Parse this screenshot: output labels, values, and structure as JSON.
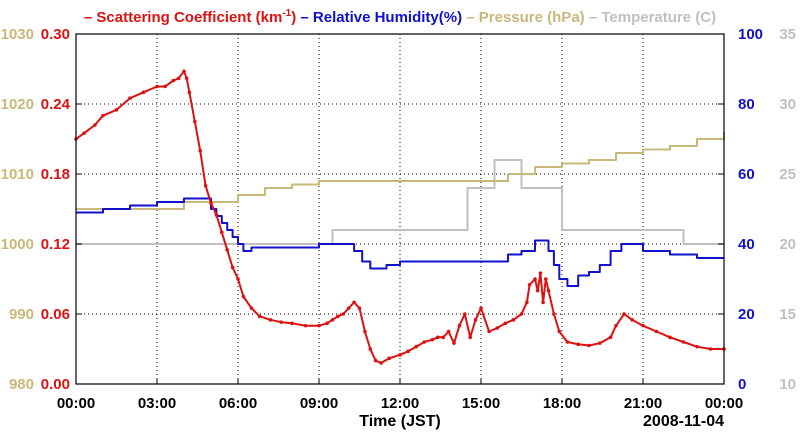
{
  "chart_data": {
    "type": "line",
    "date_label": "2008-11-04",
    "xlabel": "Time (JST)",
    "x_unit": "hours",
    "xlim": [
      0,
      24
    ],
    "x_ticks": [
      {
        "v": 0,
        "label": "00:00"
      },
      {
        "v": 3,
        "label": "03:00"
      },
      {
        "v": 6,
        "label": "06:00"
      },
      {
        "v": 9,
        "label": "09:00"
      },
      {
        "v": 12,
        "label": "12:00"
      },
      {
        "v": 15,
        "label": "15:00"
      },
      {
        "v": 18,
        "label": "18:00"
      },
      {
        "v": 21,
        "label": "21:00"
      },
      {
        "v": 24,
        "label": "00:00"
      }
    ],
    "grid": true,
    "legend": [
      {
        "prefix": "–",
        "text": "Scattering Coefficient (km",
        "sup": "-1",
        "suffix": ")",
        "color": "#dd1111"
      },
      {
        "prefix": "–",
        "text": "Relative Humidity(%)",
        "color": "#1111cc"
      },
      {
        "prefix": "–",
        "text": "Pressure (hPa)",
        "color": "#c8b87a"
      },
      {
        "prefix": "–",
        "text": "Temperature (",
        "suffix": "C)",
        "color": "#c0c0c0"
      }
    ],
    "axes": {
      "pressure": {
        "side": "left-outer",
        "color": "#c8b87a",
        "ylim": [
          980,
          1030
        ],
        "ticks": [
          "980",
          "990",
          "1000",
          "1010",
          "1020",
          "1030"
        ]
      },
      "scattering": {
        "side": "left-inner",
        "color": "#dd1111",
        "ylim": [
          0,
          0.3
        ],
        "ticks": [
          "0.00",
          "0.06",
          "0.12",
          "0.18",
          "0.24",
          "0.30"
        ]
      },
      "humidity": {
        "side": "right-inner",
        "color": "#1111cc",
        "ylim": [
          0,
          100
        ],
        "ticks": [
          "0",
          "20",
          "40",
          "60",
          "80",
          "100"
        ]
      },
      "temperature": {
        "side": "right-outer",
        "color": "#c0c0c0",
        "ylim": [
          10,
          35
        ],
        "ticks": [
          "10",
          "15",
          "20",
          "25",
          "30",
          "35"
        ]
      }
    },
    "series": [
      {
        "name": "Scattering Coefficient",
        "axis": "scattering",
        "color": "#dd1111",
        "markers": true,
        "x": [
          0,
          0.3,
          0.7,
          1,
          1.5,
          2,
          2.5,
          3,
          3.3,
          3.6,
          3.8,
          4.0,
          4.1,
          4.2,
          4.4,
          4.6,
          4.8,
          5.0,
          5.2,
          5.4,
          5.6,
          5.8,
          6.0,
          6.2,
          6.5,
          6.8,
          7.2,
          7.6,
          8.0,
          8.5,
          9.0,
          9.3,
          9.5,
          9.7,
          9.9,
          10.1,
          10.3,
          10.5,
          10.7,
          10.9,
          11.1,
          11.3,
          11.6,
          12.0,
          12.3,
          12.6,
          12.9,
          13.2,
          13.4,
          13.6,
          13.8,
          14.0,
          14.2,
          14.4,
          14.6,
          14.8,
          15.0,
          15.3,
          15.6,
          15.9,
          16.2,
          16.5,
          16.7,
          16.8,
          17.0,
          17.1,
          17.2,
          17.3,
          17.4,
          17.5,
          17.7,
          17.9,
          18.2,
          18.6,
          19.0,
          19.4,
          19.8,
          20.0,
          20.3,
          20.6,
          21.0,
          21.5,
          22.0,
          22.5,
          23.0,
          23.5,
          24.0
        ],
        "values": [
          0.21,
          0.215,
          0.222,
          0.23,
          0.235,
          0.245,
          0.25,
          0.255,
          0.255,
          0.26,
          0.262,
          0.268,
          0.262,
          0.25,
          0.225,
          0.2,
          0.17,
          0.155,
          0.145,
          0.13,
          0.115,
          0.1,
          0.09,
          0.075,
          0.065,
          0.058,
          0.055,
          0.053,
          0.052,
          0.05,
          0.05,
          0.052,
          0.055,
          0.058,
          0.06,
          0.065,
          0.07,
          0.065,
          0.045,
          0.03,
          0.02,
          0.018,
          0.022,
          0.025,
          0.028,
          0.032,
          0.036,
          0.038,
          0.04,
          0.04,
          0.045,
          0.035,
          0.05,
          0.06,
          0.04,
          0.055,
          0.065,
          0.045,
          0.048,
          0.052,
          0.055,
          0.06,
          0.07,
          0.085,
          0.09,
          0.08,
          0.095,
          0.07,
          0.09,
          0.08,
          0.06,
          0.045,
          0.036,
          0.034,
          0.033,
          0.035,
          0.04,
          0.05,
          0.06,
          0.055,
          0.05,
          0.045,
          0.04,
          0.036,
          0.032,
          0.03,
          0.03
        ]
      },
      {
        "name": "Relative Humidity",
        "axis": "humidity",
        "color": "#1111cc",
        "markers": false,
        "step": true,
        "x": [
          0,
          1,
          2,
          3,
          4,
          4.5,
          5.0,
          5.2,
          5.4,
          5.6,
          5.8,
          6.0,
          6.2,
          6.5,
          7.0,
          8.0,
          9.0,
          9.5,
          10.0,
          10.3,
          10.6,
          10.9,
          11.2,
          11.5,
          12.0,
          13.0,
          14.0,
          15.0,
          16.0,
          16.5,
          17.0,
          17.3,
          17.5,
          17.7,
          17.9,
          18.2,
          18.6,
          19.0,
          19.4,
          19.8,
          20.2,
          21.0,
          22.0,
          23.0,
          24.0
        ],
        "values": [
          49,
          50,
          51,
          52,
          53,
          53,
          50,
          48,
          46,
          44,
          42,
          40,
          38,
          39,
          39,
          39,
          40,
          40,
          40,
          38,
          35,
          33,
          33,
          34,
          35,
          35,
          35,
          35,
          37,
          38,
          41,
          41,
          38,
          34,
          30,
          28,
          31,
          32,
          34,
          38,
          40,
          38,
          37,
          36,
          36
        ]
      },
      {
        "name": "Pressure",
        "axis": "pressure",
        "color": "#c8b87a",
        "markers": false,
        "step": true,
        "x": [
          0,
          2,
          4,
          5,
          6,
          6.5,
          7,
          7.5,
          8,
          9,
          12,
          15,
          16,
          17,
          18,
          19,
          20,
          21,
          22,
          23,
          24
        ],
        "values": [
          1005,
          1005,
          1006,
          1006,
          1007,
          1007,
          1008,
          1008,
          1008.5,
          1009,
          1009,
          1009,
          1010,
          1011,
          1011.5,
          1012,
          1013,
          1013.5,
          1014,
          1015,
          1016
        ]
      },
      {
        "name": "Temperature",
        "axis": "temperature",
        "color": "#c0c0c0",
        "markers": false,
        "step": true,
        "x": [
          0,
          8.7,
          9.5,
          10.0,
          13.0,
          14.5,
          15.5,
          16.5,
          18.0,
          20.0,
          22.5,
          24.0
        ],
        "values": [
          20,
          20,
          21,
          21,
          21,
          24,
          26,
          24,
          21,
          21,
          20,
          20
        ]
      }
    ]
  }
}
